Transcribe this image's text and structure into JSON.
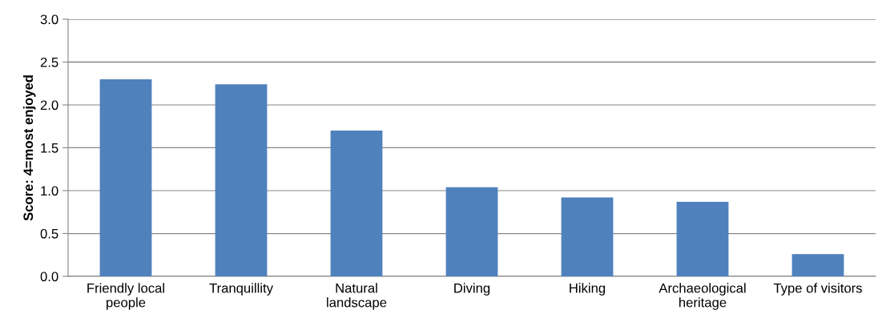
{
  "chart_data": {
    "type": "bar",
    "ylabel": "Score: 4=most enjoyed",
    "categories": [
      "Friendly local\npeople",
      "Tranquillity",
      "Natural\nlandscape",
      "Diving",
      "Hiking",
      "Archaeological\nheritage",
      "Type of visitors"
    ],
    "values": [
      2.3,
      2.24,
      1.7,
      1.04,
      0.92,
      0.87,
      0.26
    ],
    "color": "#4f81bd",
    "ylim": [
      0,
      3.0
    ],
    "yticks": [
      {
        "value": 0,
        "label": "0.0"
      },
      {
        "value": 0.5,
        "label": "0.5"
      },
      {
        "value": 1.0,
        "label": "1.0"
      },
      {
        "value": 1.5,
        "label": "1.5"
      },
      {
        "value": 2.0,
        "label": "2.0"
      },
      {
        "value": 2.5,
        "label": "2.5"
      },
      {
        "value": 3.0,
        "label": "3.0"
      }
    ],
    "grid": "y",
    "legend": false
  }
}
